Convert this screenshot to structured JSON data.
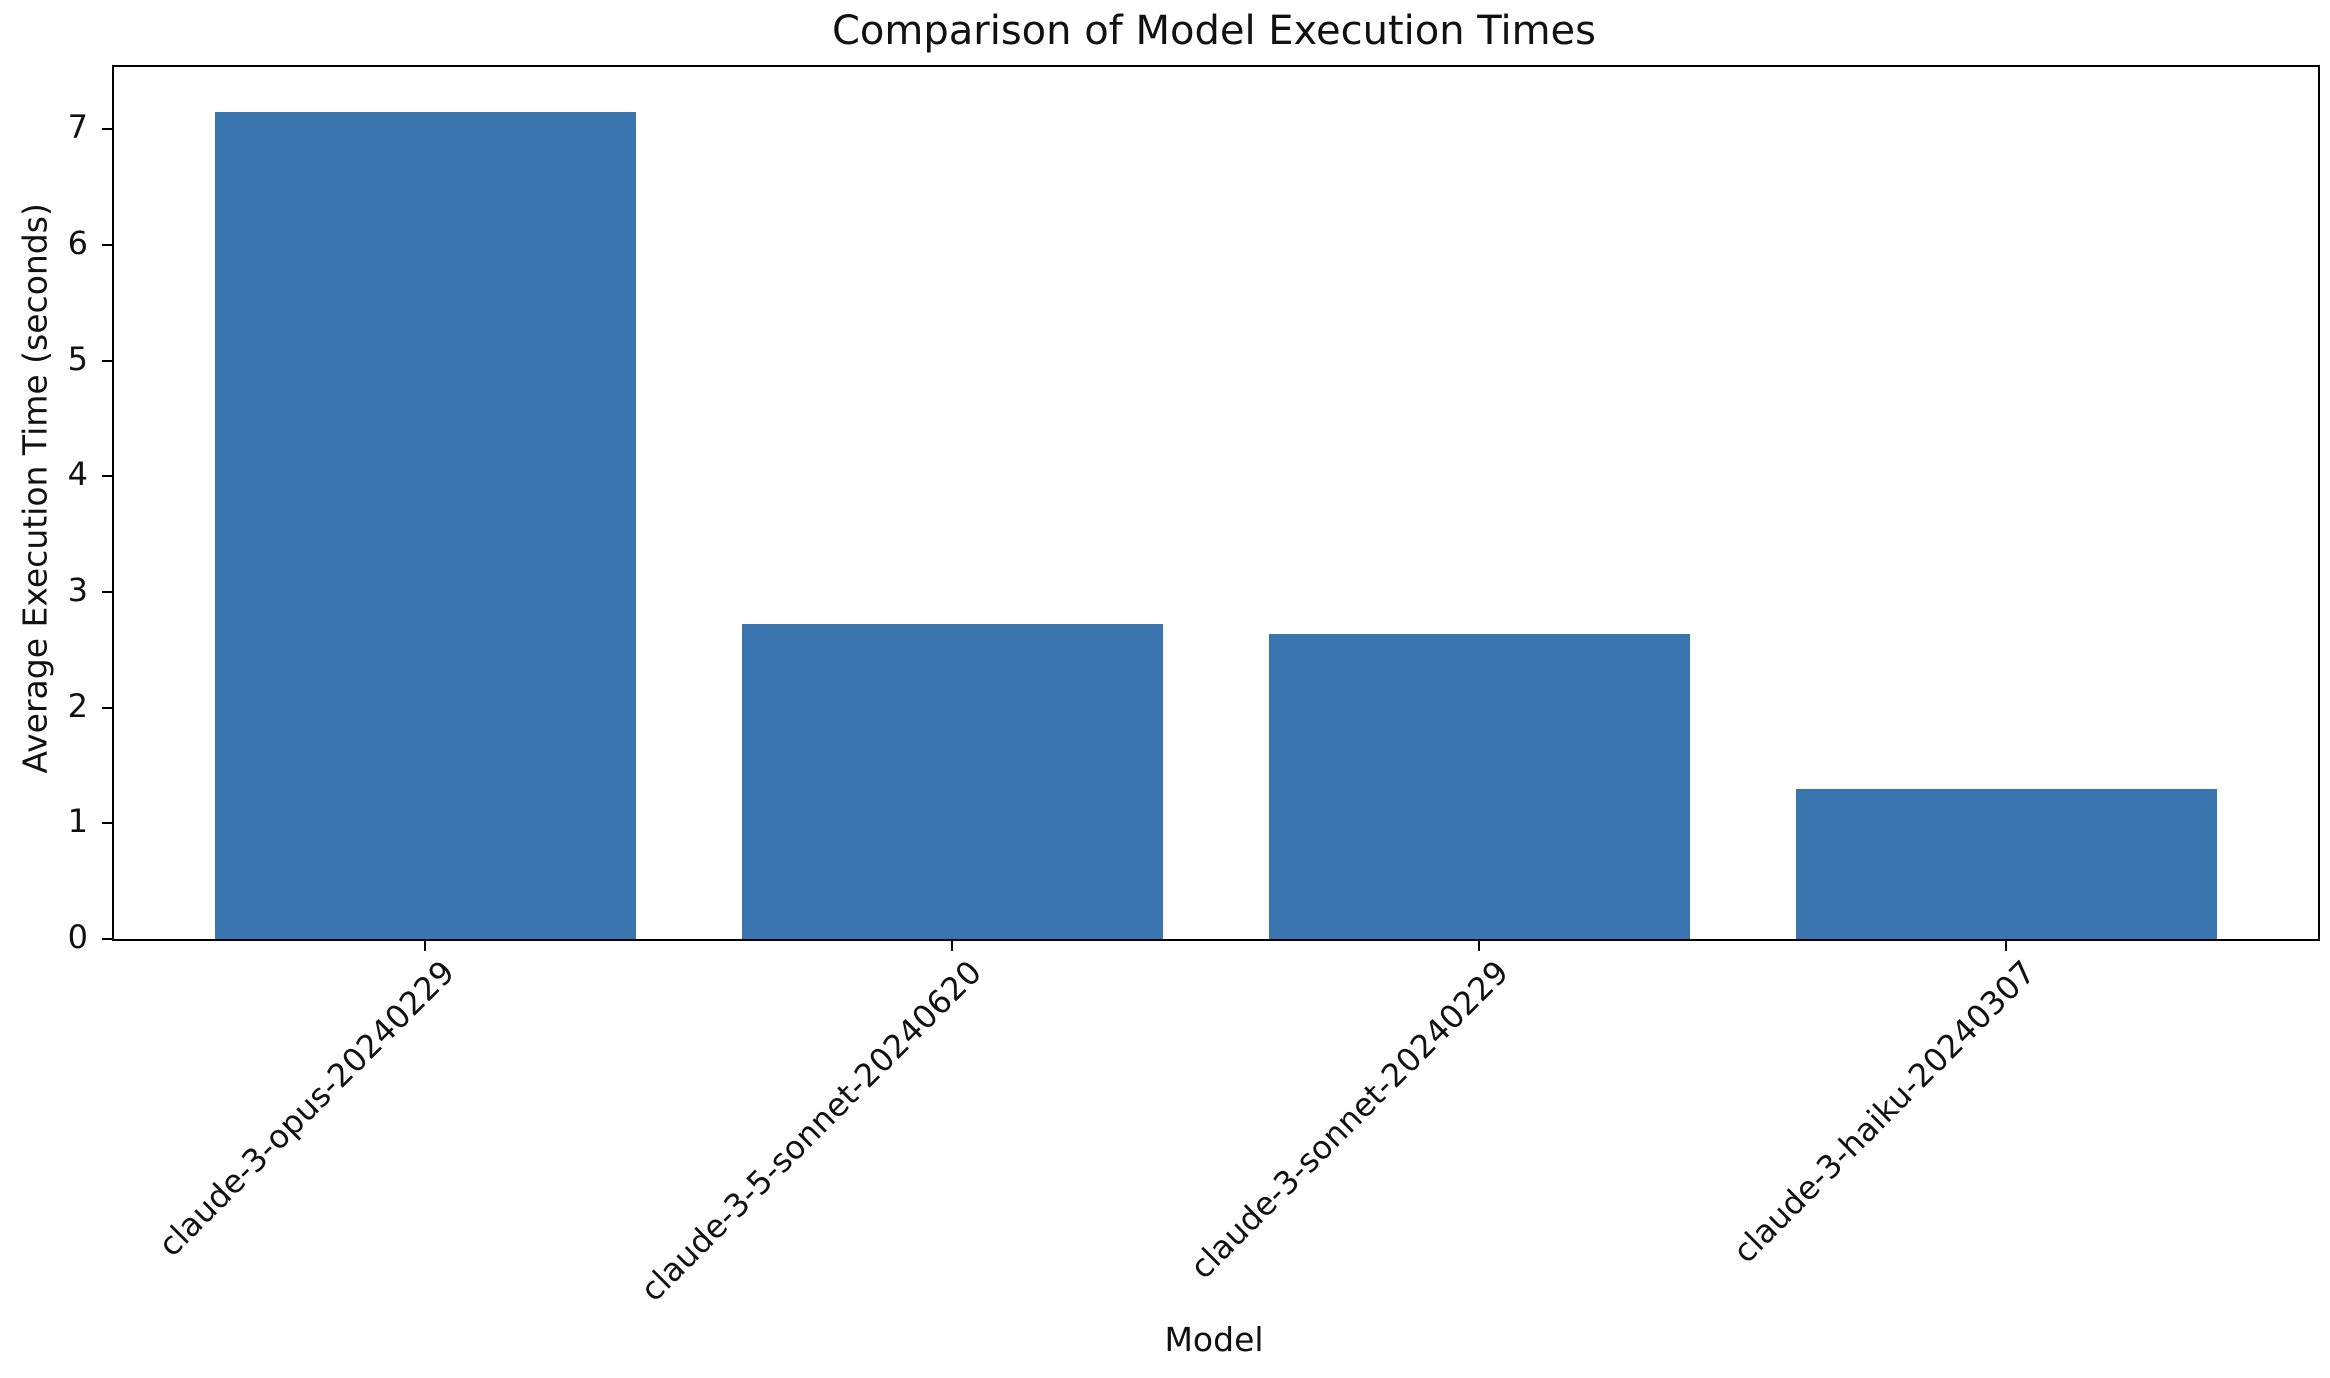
{
  "chart_data": {
    "type": "bar",
    "title": "Comparison of Model Execution Times",
    "xlabel": "Model",
    "ylabel": "Average Execution Time (seconds)",
    "categories": [
      "claude-3-opus-20240229",
      "claude-3-5-sonnet-20240620",
      "claude-3-sonnet-20240229",
      "claude-3-haiku-20240307"
    ],
    "values": [
      7.15,
      2.72,
      2.64,
      1.3
    ],
    "yticks": [
      0,
      1,
      2,
      3,
      4,
      5,
      6,
      7
    ],
    "ylim": [
      0,
      7.54
    ],
    "xtick_rotation_deg": 45,
    "grid": false,
    "legend": null,
    "bar_color": "#3b75af",
    "axis_color": "#000000",
    "text_color": "#111111",
    "background_color": "#ffffff"
  }
}
